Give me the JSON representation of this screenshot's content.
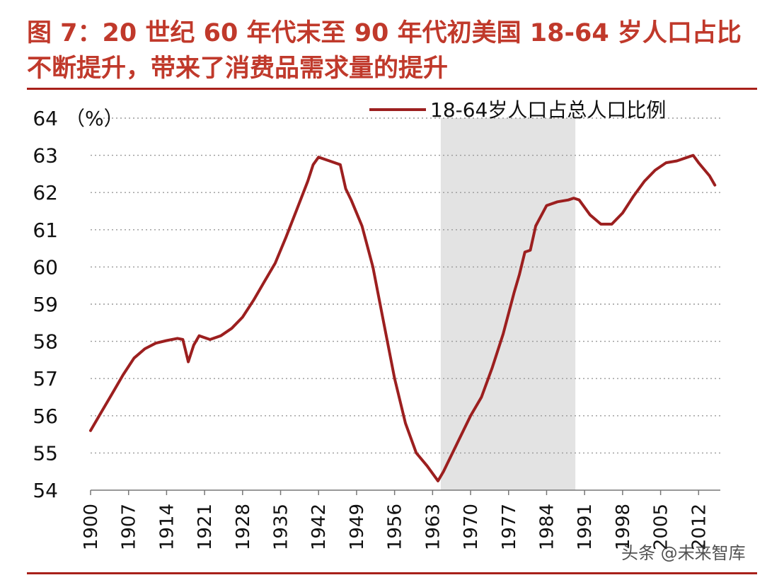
{
  "figure_title": "图 7：20 世纪 60 年代末至 90 年代初美国 18-64 岁人口占比不断提升，带来了消费品需求量的提升",
  "watermark": "头条 @未来智库",
  "colors": {
    "title": "#c0392b",
    "line": "#9c1f1f",
    "shade": "#e3e3e3",
    "rule": "#a8201a",
    "grid": "#9a9a9a"
  },
  "chart_data": {
    "type": "line",
    "title": "",
    "unit_label": "（%）",
    "xlabel": "",
    "ylabel": "%",
    "ylim": [
      54,
      64
    ],
    "xlim": [
      1900,
      2016
    ],
    "y_ticks": [
      "54",
      "55",
      "56",
      "57",
      "58",
      "59",
      "60",
      "61",
      "62",
      "63",
      "64"
    ],
    "x_ticks": [
      "1900",
      "1907",
      "1914",
      "1921",
      "1928",
      "1935",
      "1942",
      "1949",
      "1956",
      "1963",
      "1970",
      "1977",
      "1984",
      "1991",
      "1998",
      "2005",
      "2012"
    ],
    "shaded_range": [
      1964.5,
      1989.3
    ],
    "grid": "horizontal dotted",
    "legend": {
      "position": "top-right"
    },
    "series": [
      {
        "name": "18-64岁人口占总人口比例",
        "x": [
          1900,
          1902,
          1904,
          1906,
          1908,
          1910,
          1912,
          1914,
          1916,
          1917,
          1918,
          1919,
          1920,
          1922,
          1924,
          1926,
          1928,
          1930,
          1932,
          1934,
          1936,
          1938,
          1940,
          1941,
          1942,
          1944,
          1946,
          1947,
          1948,
          1950,
          1952,
          1954,
          1956,
          1958,
          1960,
          1962,
          1964,
          1965,
          1966,
          1968,
          1970,
          1972,
          1974,
          1976,
          1978,
          1979,
          1980,
          1981,
          1982,
          1984,
          1986,
          1988,
          1989,
          1990,
          1992,
          1994,
          1996,
          1998,
          2000,
          2002,
          2004,
          2006,
          2008,
          2010,
          2011,
          2012,
          2014,
          2015
        ],
        "values": [
          55.6,
          56.1,
          56.6,
          57.1,
          57.55,
          57.8,
          57.95,
          58.02,
          58.08,
          58.05,
          57.45,
          57.9,
          58.15,
          58.05,
          58.15,
          58.35,
          58.65,
          59.1,
          59.6,
          60.1,
          60.8,
          61.55,
          62.3,
          62.75,
          62.95,
          62.85,
          62.75,
          62.1,
          61.8,
          61.1,
          60.0,
          58.5,
          57.0,
          55.8,
          55.0,
          54.65,
          54.25,
          54.5,
          54.8,
          55.4,
          56.0,
          56.5,
          57.3,
          58.2,
          59.3,
          59.8,
          60.4,
          60.45,
          61.1,
          61.65,
          61.75,
          61.8,
          61.85,
          61.8,
          61.4,
          61.15,
          61.15,
          61.45,
          61.9,
          62.3,
          62.6,
          62.8,
          62.85,
          62.95,
          63.0,
          62.8,
          62.45,
          62.2
        ]
      }
    ]
  }
}
